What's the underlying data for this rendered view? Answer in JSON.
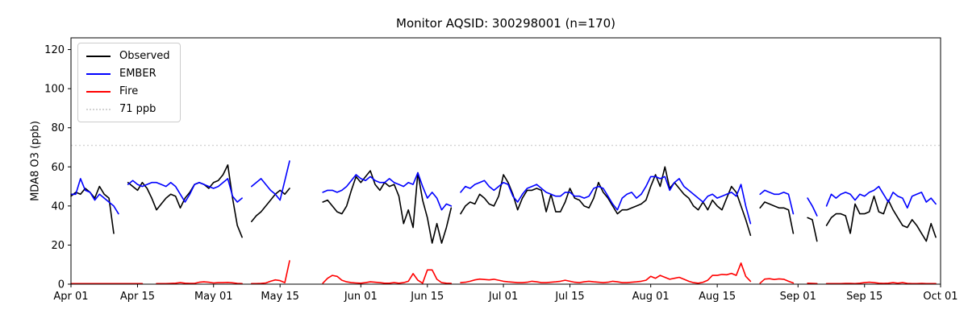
{
  "title": "Monitor AQSID: 300298001 (n=170)",
  "chart_data": {
    "type": "line",
    "title": "Monitor AQSID: 300298001 (n=170)",
    "xlabel": "",
    "ylabel": "MDA8 O3 (ppb)",
    "ylim": [
      0,
      126
    ],
    "x_range_days": [
      0,
      183
    ],
    "x_start_date": "Apr 01",
    "x_end_date": "Oct 01",
    "grid": false,
    "legend_position": "upper left",
    "background_color": "#ffffff",
    "x_ticks": [
      {
        "label": "Apr 01",
        "day": 0
      },
      {
        "label": "Apr 15",
        "day": 14
      },
      {
        "label": "May 01",
        "day": 30
      },
      {
        "label": "May 15",
        "day": 44
      },
      {
        "label": "Jun 01",
        "day": 61
      },
      {
        "label": "Jun 15",
        "day": 75
      },
      {
        "label": "Jul 01",
        "day": 91
      },
      {
        "label": "Jul 15",
        "day": 105
      },
      {
        "label": "Aug 01",
        "day": 122
      },
      {
        "label": "Aug 15",
        "day": 136
      },
      {
        "label": "Sep 01",
        "day": 153
      },
      {
        "label": "Sep 15",
        "day": 167
      },
      {
        "label": "Oct 01",
        "day": 183
      }
    ],
    "y_ticks": [
      0,
      20,
      40,
      60,
      80,
      100,
      120
    ],
    "threshold": {
      "label": "71 ppb",
      "value": 71,
      "color": "#d3d3d3",
      "style": "dotted"
    },
    "series": [
      {
        "name": "Observed",
        "color": "#000000",
        "style": "solid",
        "segments": [
          {
            "start_day": 0,
            "values": [
              45,
              47,
              46,
              49,
              47,
              44,
              50,
              46,
              44,
              26
            ]
          },
          {
            "start_day": 12,
            "values": [
              52,
              50,
              48,
              52,
              49,
              44,
              38,
              41,
              44,
              46,
              45,
              39,
              44,
              47,
              51,
              52,
              51,
              49,
              52,
              53,
              56,
              61,
              44,
              30,
              24
            ]
          },
          {
            "start_day": 38,
            "values": [
              32,
              35,
              37,
              40,
              43,
              46,
              48,
              46,
              49
            ]
          },
          {
            "start_day": 53,
            "values": [
              42,
              43,
              40,
              37,
              36,
              40,
              48,
              55,
              52,
              55,
              58,
              51,
              48,
              52,
              50,
              51,
              45,
              31,
              38,
              29,
              57,
              43,
              34,
              21,
              31,
              21,
              29,
              39
            ]
          },
          {
            "start_day": 82,
            "values": [
              36,
              40,
              42,
              41,
              46,
              44,
              41,
              40,
              45,
              56,
              52,
              46,
              38,
              44,
              48,
              48,
              49,
              48,
              37,
              46,
              37,
              37,
              42,
              49,
              44,
              43,
              40,
              39,
              44,
              52,
              47,
              44,
              40,
              36,
              38,
              38,
              39,
              40,
              41,
              43,
              50,
              56,
              50,
              60,
              49,
              52,
              49,
              46,
              44,
              40,
              38,
              42,
              38,
              43,
              40,
              38,
              44,
              50,
              47,
              40,
              33,
              25
            ]
          },
          {
            "start_day": 145,
            "values": [
              39,
              42,
              41,
              40,
              39,
              39,
              38,
              26
            ]
          },
          {
            "start_day": 155,
            "values": [
              34,
              33,
              22
            ]
          },
          {
            "start_day": 159,
            "values": [
              30,
              34,
              36,
              36,
              35,
              26,
              41,
              36,
              36,
              37,
              45,
              37,
              36,
              43,
              38,
              34,
              30,
              29,
              33,
              30,
              26,
              22,
              31,
              24
            ]
          }
        ]
      },
      {
        "name": "EMBER",
        "color": "#0000ff",
        "style": "solid",
        "segments": [
          {
            "start_day": 0,
            "values": [
              46,
              46,
              54,
              48,
              47,
              43,
              46,
              44,
              42,
              40,
              36
            ]
          },
          {
            "start_day": 12,
            "values": [
              51,
              53,
              51,
              50,
              51,
              52,
              52,
              51,
              50,
              52,
              50,
              46,
              42,
              46,
              51,
              52,
              51,
              50,
              49,
              50,
              52,
              54,
              45,
              42,
              44
            ]
          },
          {
            "start_day": 38,
            "values": [
              50,
              52,
              54,
              51,
              48,
              46,
              43,
              53,
              63
            ]
          },
          {
            "start_day": 53,
            "values": [
              47,
              48,
              48,
              47,
              48,
              50,
              53,
              56,
              54,
              53,
              55,
              53,
              52,
              52,
              54,
              52,
              51,
              50,
              52,
              51,
              57,
              50,
              44,
              47,
              44,
              38,
              41,
              40
            ]
          },
          {
            "start_day": 82,
            "values": [
              47,
              50,
              49,
              51,
              52,
              53,
              50,
              48,
              50,
              52,
              51,
              45,
              42,
              46,
              49,
              50,
              51,
              49,
              47,
              46,
              45,
              45,
              47,
              47,
              45,
              45,
              44,
              45,
              49,
              50,
              49,
              45,
              41,
              38,
              44,
              46,
              47,
              44,
              46,
              50,
              55,
              55,
              54,
              55,
              48,
              52,
              54,
              50,
              48,
              46,
              44,
              42,
              45,
              46,
              44,
              45,
              46,
              47,
              45,
              51,
              40,
              31
            ]
          },
          {
            "start_day": 145,
            "values": [
              46,
              48,
              47,
              46,
              46,
              47,
              46,
              36
            ]
          },
          {
            "start_day": 155,
            "values": [
              44,
              40,
              35
            ]
          },
          {
            "start_day": 159,
            "values": [
              40,
              46,
              44,
              46,
              47,
              46,
              43,
              46,
              45,
              47,
              48,
              50,
              46,
              42,
              47,
              45,
              44,
              39,
              45,
              46,
              47,
              42,
              44,
              41
            ]
          }
        ]
      },
      {
        "name": "Fire",
        "color": "#ff0000",
        "style": "solid",
        "segments": [
          {
            "start_day": 0,
            "values": [
              0.3,
              0.3,
              0.3,
              0.3,
              0.3,
              0.3,
              0.3,
              0.3,
              0.3,
              0.3,
              0.3,
              0.3,
              0.3,
              0.3,
              0.3,
              0.3
            ]
          },
          {
            "start_day": 18,
            "values": [
              0.3,
              0.3,
              0.3,
              0.4,
              0.5,
              0.8,
              0.5,
              0.4,
              0.4,
              1.0,
              1.2,
              1.0,
              0.6,
              0.8,
              0.8,
              0.9,
              0.7,
              0.4,
              0.3
            ]
          },
          {
            "start_day": 38,
            "values": [
              0.3,
              0.3,
              0.4,
              0.6,
              1.5,
              2.2,
              1.8,
              0.8,
              12.0
            ]
          },
          {
            "start_day": 53,
            "values": [
              0.5,
              3.0,
              4.5,
              4.0,
              2.0,
              1.2,
              0.8,
              0.6,
              0.5,
              0.8,
              1.2,
              1.0,
              0.8,
              0.5,
              0.5,
              0.8,
              0.5,
              0.8,
              1.5,
              5.4,
              2.0,
              0.5,
              7.3,
              7.3,
              2.5,
              0.8,
              0.5,
              0.4
            ]
          },
          {
            "start_day": 82,
            "values": [
              0.8,
              1.0,
              1.5,
              2.2,
              2.6,
              2.4,
              2.2,
              2.5,
              2.0,
              1.5,
              1.2,
              1.0,
              0.8,
              0.8,
              1.0,
              1.5,
              1.2,
              0.8,
              0.8,
              1.0,
              1.2,
              1.5,
              2.0,
              1.5,
              1.0,
              0.8,
              1.2,
              1.5,
              1.2,
              1.0,
              0.8,
              1.0,
              1.5,
              1.2,
              0.8,
              0.8,
              1.0,
              1.2,
              1.5,
              2.0,
              4.0,
              3.0,
              4.5,
              3.5,
              2.5,
              3.0,
              3.5,
              2.5,
              1.5,
              0.8,
              0.5,
              1.0,
              2.0,
              4.5,
              4.5,
              5.0,
              4.8,
              5.5,
              4.5,
              10.8,
              4.0,
              1.5
            ]
          },
          {
            "start_day": 145,
            "values": [
              0.5,
              2.6,
              2.8,
              2.4,
              2.7,
              2.5,
              1.5,
              0.6
            ]
          },
          {
            "start_day": 155,
            "values": [
              0.5,
              0.4,
              0.3
            ]
          },
          {
            "start_day": 159,
            "values": [
              0.3,
              0.3,
              0.3,
              0.3,
              0.4,
              0.4,
              0.3,
              0.5,
              0.8,
              1.0,
              0.8,
              0.5,
              0.4,
              0.5,
              0.8,
              0.5,
              0.8,
              0.4,
              0.3,
              0.3,
              0.4,
              0.3,
              0.3,
              0.3
            ]
          }
        ]
      }
    ]
  }
}
